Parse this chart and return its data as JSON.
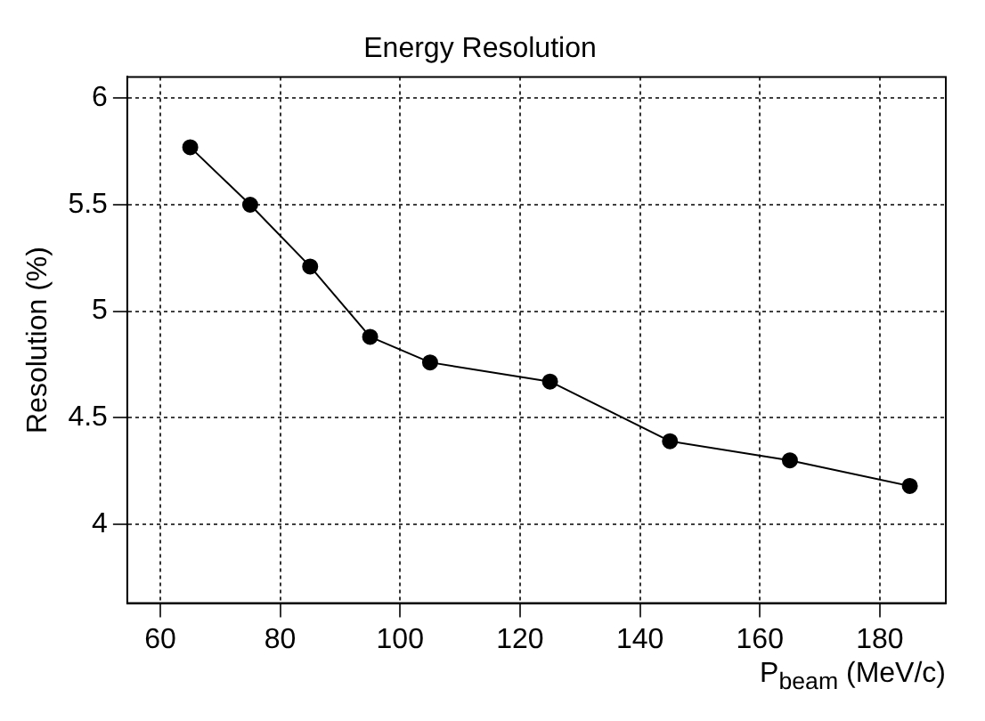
{
  "chart_data": {
    "type": "line",
    "title": "Energy Resolution",
    "xlabel": "P$_{beam}$ (MeV/c)",
    "ylabel": "Resolution (%)",
    "x": [
      65,
      75,
      85,
      95,
      105,
      125,
      145,
      165,
      185
    ],
    "series": [
      {
        "color": "#000000",
        "values": [
          5.77,
          5.5,
          5.21,
          4.88,
          4.76,
          4.67,
          4.39,
          4.3,
          4.18
        ]
      }
    ],
    "xlim": [
      54.5,
      191
    ],
    "xticks": [
      60,
      80,
      100,
      120,
      140,
      160,
      180
    ],
    "ylim": [
      3.63,
      6.1
    ],
    "yticks": [
      4,
      4.5,
      5,
      5.5,
      6
    ],
    "grid": true,
    "legend": false,
    "marker": "circle",
    "line_style": "solid"
  }
}
